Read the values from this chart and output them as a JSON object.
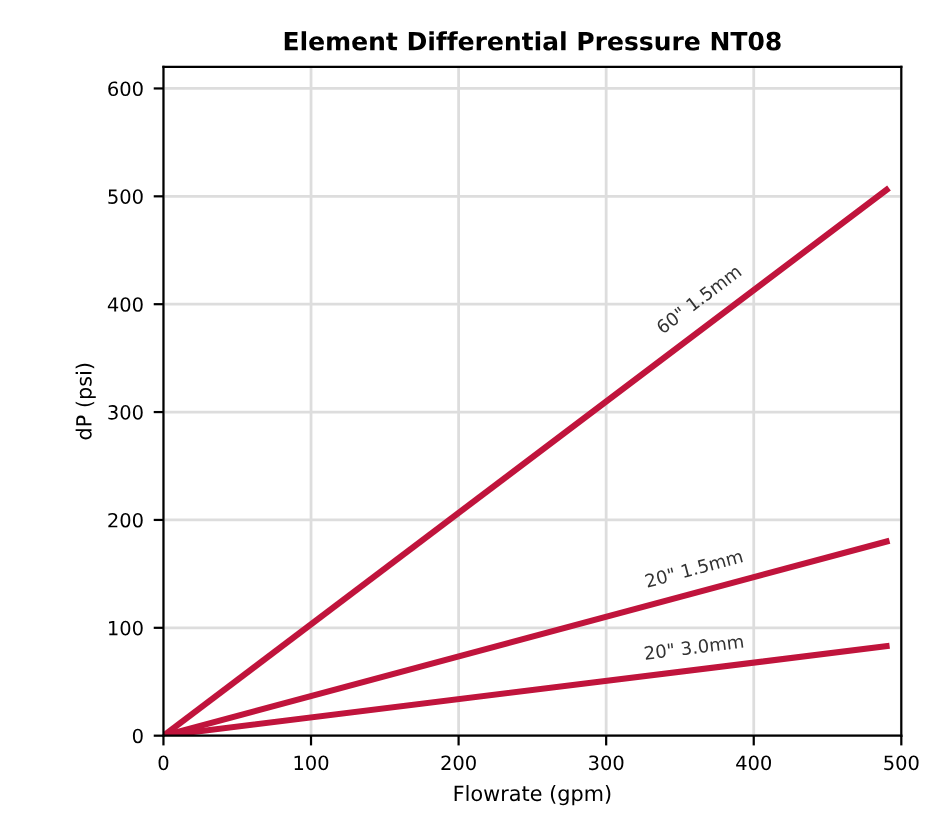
{
  "chart_data": {
    "type": "line",
    "title": "Element Differential Pressure NT08",
    "xlabel": "Flowrate (gpm)",
    "ylabel": "dP (psi)",
    "x": [
      0,
      490
    ],
    "series": [
      {
        "name": "60\" 1.5mm",
        "color": "#c0143c",
        "values": [
          0,
          506
        ]
      },
      {
        "name": "20\" 1.5mm",
        "color": "#c0143c",
        "values": [
          0,
          180
        ]
      },
      {
        "name": "20\" 3.0mm",
        "color": "#c0143c",
        "values": [
          0,
          83
        ]
      }
    ],
    "xlim": [
      0,
      500
    ],
    "xticks": [
      0,
      100,
      200,
      300,
      400,
      500
    ],
    "ylim": [
      0,
      620
    ],
    "yticks": [
      0,
      100,
      200,
      300,
      400,
      500,
      600
    ],
    "grid": true,
    "legend": false,
    "marker": "none",
    "line_style": "solid"
  }
}
